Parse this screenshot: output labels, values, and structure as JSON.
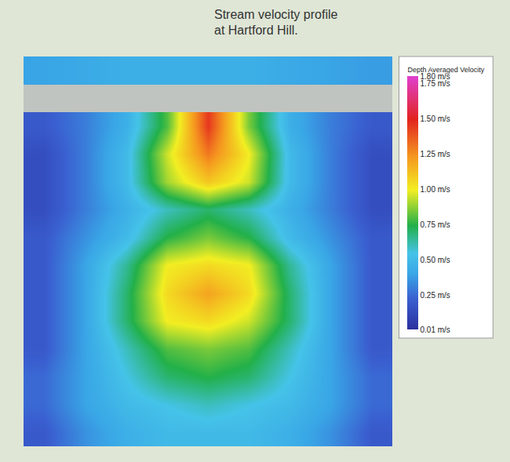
{
  "chart_data": {
    "type": "heatmap",
    "title": "Stream velocity profile at Hartford Hill.",
    "colorbar_title": "Depth Averaged Velocity",
    "tick_labels": false,
    "grid": false,
    "cells": [
      [
        0.4,
        0.42,
        0.45,
        0.45,
        0.45,
        0.45,
        0.42,
        0.4,
        0.38
      ],
      [
        null,
        null,
        null,
        null,
        null,
        null,
        null,
        null,
        null
      ],
      [
        0.2,
        0.3,
        0.45,
        0.8,
        1.45,
        0.85,
        0.45,
        0.3,
        0.2
      ],
      [
        0.15,
        0.3,
        0.5,
        0.95,
        1.3,
        1.0,
        0.5,
        0.3,
        0.15
      ],
      [
        0.15,
        0.3,
        0.5,
        0.9,
        1.1,
        0.95,
        0.5,
        0.3,
        0.15
      ],
      [
        0.15,
        0.3,
        0.45,
        0.6,
        0.7,
        0.6,
        0.45,
        0.3,
        0.15
      ],
      [
        0.2,
        0.35,
        0.5,
        0.75,
        0.85,
        0.75,
        0.5,
        0.35,
        0.2
      ],
      [
        0.2,
        0.4,
        0.65,
        1.0,
        1.05,
        1.0,
        0.65,
        0.4,
        0.2
      ],
      [
        0.2,
        0.4,
        0.7,
        1.05,
        1.2,
        1.05,
        0.7,
        0.4,
        0.2
      ],
      [
        0.2,
        0.4,
        0.7,
        1.0,
        1.05,
        0.95,
        0.7,
        0.4,
        0.2
      ],
      [
        0.2,
        0.4,
        0.6,
        0.8,
        0.85,
        0.8,
        0.6,
        0.4,
        0.2
      ],
      [
        0.25,
        0.4,
        0.55,
        0.7,
        0.75,
        0.7,
        0.55,
        0.4,
        0.25
      ],
      [
        0.25,
        0.4,
        0.5,
        0.55,
        0.6,
        0.55,
        0.5,
        0.4,
        0.25
      ],
      [
        0.2,
        0.35,
        0.45,
        0.5,
        0.5,
        0.5,
        0.45,
        0.35,
        0.2
      ]
    ],
    "color_range": [
      0.01,
      1.8
    ],
    "color_ticks": [
      {
        "value": 1.8,
        "label": "1.80 m/s"
      },
      {
        "value": 1.75,
        "label": "1.75 m/s"
      },
      {
        "value": 1.5,
        "label": "1.50 m/s"
      },
      {
        "value": 1.25,
        "label": "1.25 m/s"
      },
      {
        "value": 1.0,
        "label": "1.00 m/s"
      },
      {
        "value": 0.75,
        "label": "0.75 m/s"
      },
      {
        "value": 0.5,
        "label": "0.50 m/s"
      },
      {
        "value": 0.25,
        "label": "0.25 m/s"
      },
      {
        "value": 0.01,
        "label": "0.01 m/s"
      }
    ]
  }
}
